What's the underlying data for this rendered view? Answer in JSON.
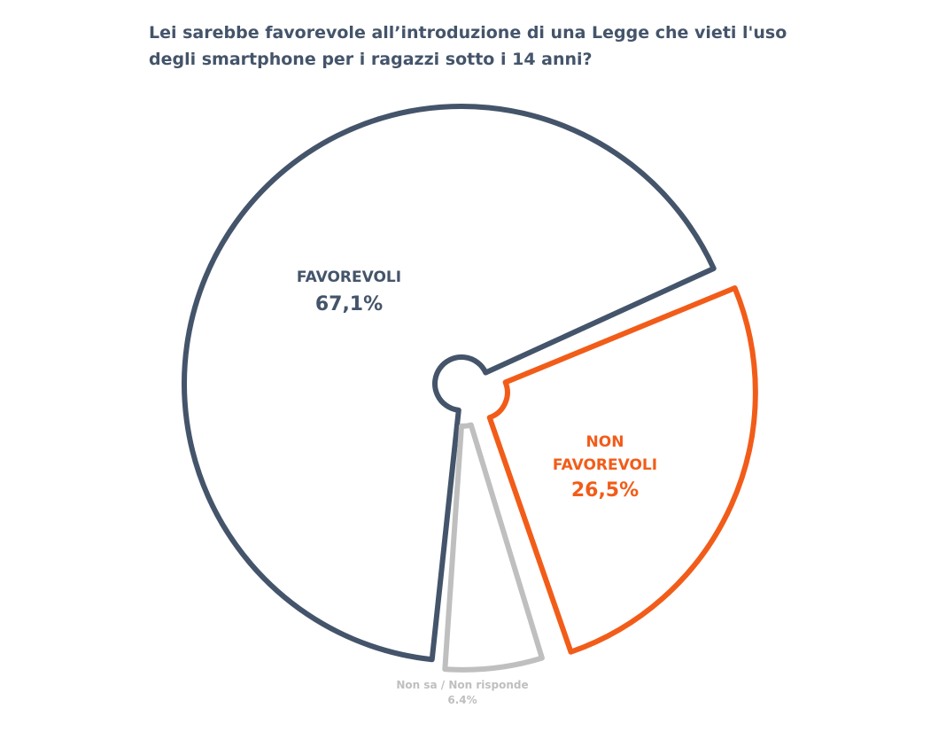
{
  "chart_data": {
    "type": "pie",
    "title_lines": [
      "Lei sarebbe favorevole all’introduzione di una Legge che vieti l'uso",
      "degli smartphone per i ragazzi sotto i 14 anni?"
    ],
    "slices": [
      {
        "label_lines": [
          "FAVOREVOLI"
        ],
        "value_label": "67,1%",
        "value": 67.1,
        "color": "#44546a"
      },
      {
        "label_lines": [
          "NON",
          "FAVOREVOLI"
        ],
        "value_label": "26,5%",
        "value": 26.5,
        "color": "#f25c19"
      },
      {
        "label_lines": [
          "Non sa / Non risponde"
        ],
        "value_label": "6.4%",
        "value": 6.4,
        "color": "#bfbfbf"
      }
    ]
  }
}
